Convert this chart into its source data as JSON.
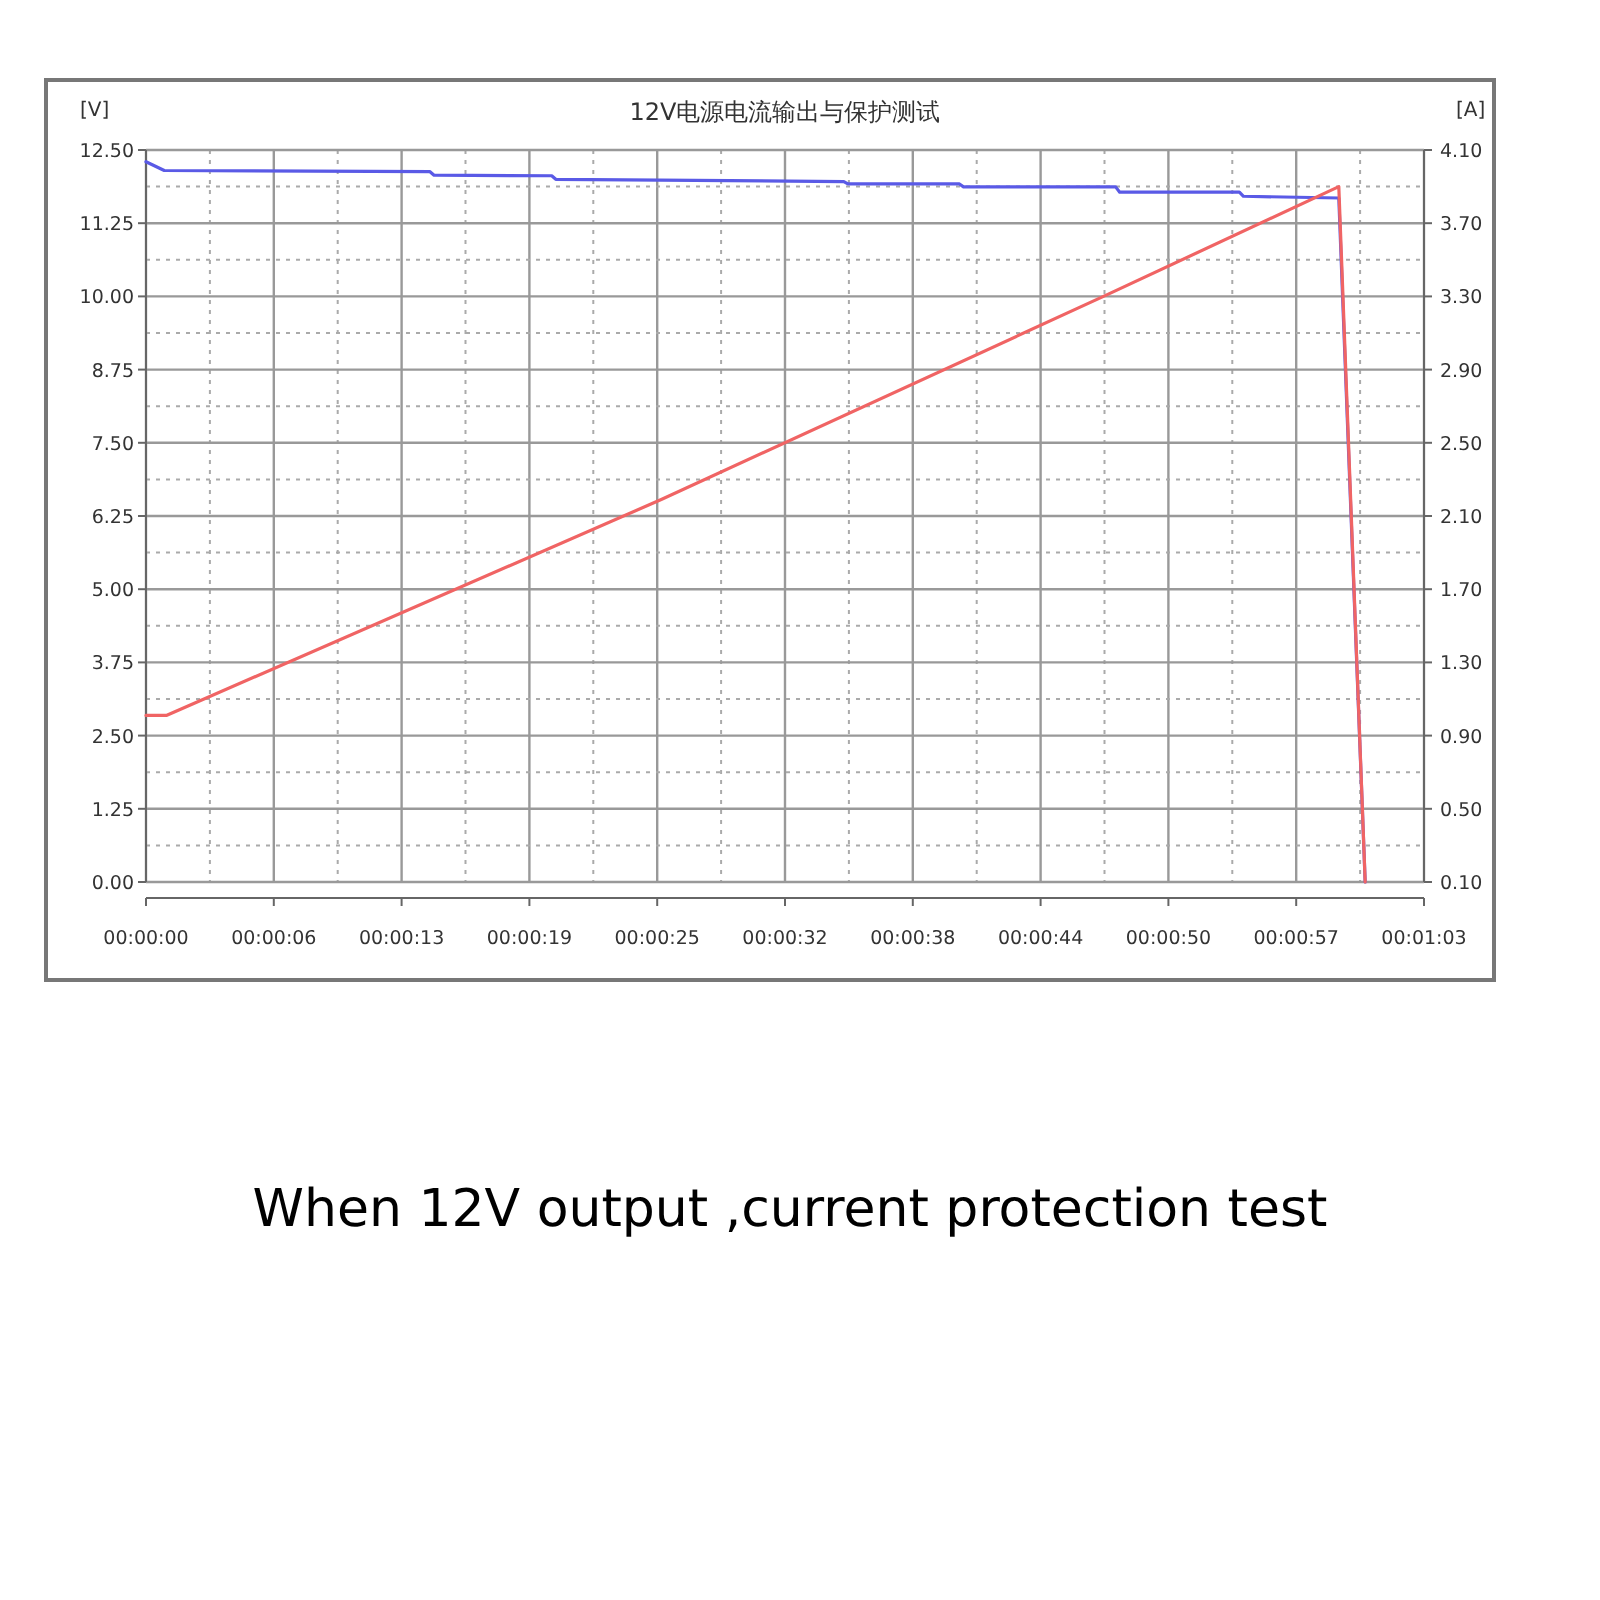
{
  "chart_data": {
    "type": "line",
    "title": "12V电源电流输出与保护测试",
    "ylabel": "[V]",
    "y2label": "[A]",
    "annotations": [
      "When 12V output ,current protection test"
    ],
    "xlim": [
      0,
      63
    ],
    "xticks": [
      {
        "value": 0,
        "label": "00:00:00"
      },
      {
        "value": 6.3,
        "label": "00:00:06"
      },
      {
        "value": 12.6,
        "label": "00:00:13"
      },
      {
        "value": 18.9,
        "label": "00:00:19"
      },
      {
        "value": 25.2,
        "label": "00:00:25"
      },
      {
        "value": 31.5,
        "label": "00:00:32"
      },
      {
        "value": 37.8,
        "label": "00:00:38"
      },
      {
        "value": 44.1,
        "label": "00:00:44"
      },
      {
        "value": 50.4,
        "label": "00:00:50"
      },
      {
        "value": 56.7,
        "label": "00:00:57"
      },
      {
        "value": 63,
        "label": "00:01:03"
      }
    ],
    "ylim": [
      0,
      12.5
    ],
    "yticks": [
      {
        "value": 0,
        "label": "0.00"
      },
      1.25,
      {
        "value": 2.5,
        "label": "2.50"
      },
      3.75,
      {
        "value": 5,
        "label": "5.00"
      },
      6.25,
      {
        "value": 7.5,
        "label": "7.50"
      },
      8.75,
      {
        "value": 10,
        "label": "10.00"
      },
      11.25,
      {
        "value": 12.5,
        "label": "12.50"
      }
    ],
    "y2lim": [
      0.1,
      4.1
    ],
    "y2ticks": [
      {
        "value": 0.1,
        "label": "0.10"
      },
      {
        "value": 0.5,
        "label": "0.50"
      },
      {
        "value": 0.9,
        "label": "0.90"
      },
      {
        "value": 1.3,
        "label": "1.30"
      },
      {
        "value": 1.7,
        "label": "1.70"
      },
      {
        "value": 2.1,
        "label": "2.10"
      },
      {
        "value": 2.5,
        "label": "2.50"
      },
      {
        "value": 2.9,
        "label": "2.90"
      },
      {
        "value": 3.3,
        "label": "3.30"
      },
      {
        "value": 3.7,
        "label": "3.70"
      },
      {
        "value": 4.1,
        "label": "4.10"
      }
    ],
    "grid": true,
    "marker": "none",
    "line_style": "solid",
    "series": [
      {
        "color": "#5a5ae6",
        "x": [
          0,
          0.9,
          14,
          14.2,
          20,
          20.2,
          34.4,
          34.6,
          40.1,
          40.3,
          47.8,
          48,
          53.9,
          54.1,
          58.8,
          60.1
        ],
        "values": [
          12.3,
          12.15,
          12.13,
          12.07,
          12.06,
          12.0,
          11.96,
          11.92,
          11.92,
          11.87,
          11.87,
          11.78,
          11.78,
          11.71,
          11.68,
          0
        ]
      },
      {
        "color": "#f06464",
        "axis": "y2",
        "x": [
          0,
          1.0,
          25.4,
          47.2,
          58.8,
          60.1
        ],
        "values": [
          1.01,
          1.01,
          2.19,
          3.3,
          3.9,
          0.1
        ]
      }
    ]
  }
}
